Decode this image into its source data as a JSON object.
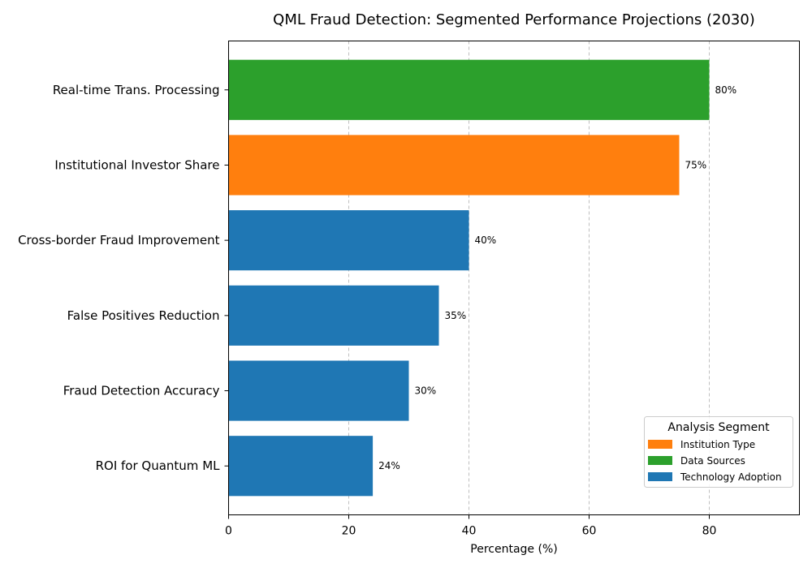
{
  "chart_data": {
    "type": "bar",
    "orientation": "horizontal",
    "title": "QML Fraud Detection: Segmented Performance Projections (2030)",
    "xlabel": "Percentage (%)",
    "ylabel": "",
    "xlim": [
      0,
      95
    ],
    "xticks": [
      0,
      20,
      40,
      60,
      80
    ],
    "grid": "x-dashed",
    "categories": [
      "ROI for Quantum ML",
      "Fraud Detection Accuracy",
      "False Positives Reduction",
      "Cross-border Fraud Improvement",
      "Institutional Investor Share",
      "Real-time Trans. Processing"
    ],
    "values": [
      24,
      30,
      35,
      40,
      75,
      80
    ],
    "data_labels": [
      "24%",
      "30%",
      "35%",
      "40%",
      "75%",
      "80%"
    ],
    "segments": [
      "Technology Adoption",
      "Technology Adoption",
      "Technology Adoption",
      "Technology Adoption",
      "Institution Type",
      "Data Sources"
    ],
    "legend": {
      "title": "Analysis Segment",
      "placement": "lower-right",
      "entries": [
        {
          "label": "Institution Type",
          "color": "#ff7f0e"
        },
        {
          "label": "Data Sources",
          "color": "#2ca02c"
        },
        {
          "label": "Technology Adoption",
          "color": "#1f77b4"
        }
      ]
    }
  }
}
